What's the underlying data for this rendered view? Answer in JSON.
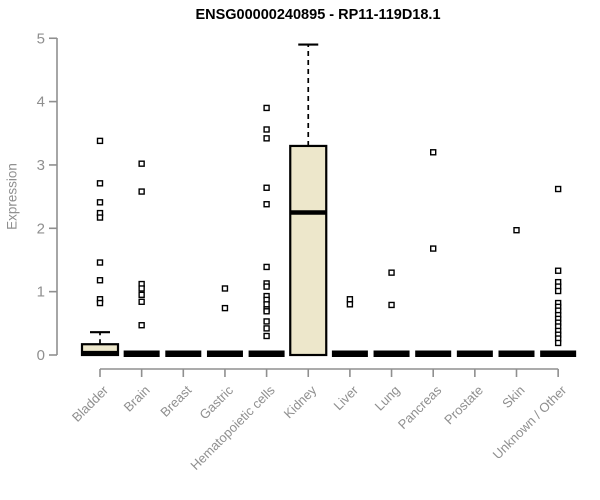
{
  "colors": {
    "box_fill": "#ede7cb",
    "box_stroke": "#000000",
    "median": "#000000",
    "flat_bar": "#000000",
    "axis": "#8f8f8f",
    "tick_text": "#8f8f8f",
    "title_text": "#000000",
    "outlier_fill": "#ffffff",
    "outlier_stroke": "#000000"
  },
  "chart_data": {
    "type": "boxplot",
    "title": "ENSG00000240895 - RP11-119D18.1",
    "xlabel": "",
    "ylabel": "Expression",
    "ylim": [
      0,
      5
    ],
    "yticks": [
      0,
      1,
      2,
      3,
      4,
      5
    ],
    "grid": "off",
    "legend": "none",
    "categories": [
      "Bladder",
      "Brain",
      "Breast",
      "Gastric",
      "Hematopoietic cells",
      "Kidney",
      "Liver",
      "Lung",
      "Pancreas",
      "Prostate",
      "Skin",
      "Unknown / Other"
    ],
    "series": [
      {
        "category": "Bladder",
        "whisker_low": 0,
        "q1": 0,
        "median": 0.03,
        "q3": 0.17,
        "whisker_high": 0.36,
        "outliers": [
          3.38,
          2.71,
          2.41,
          2.24,
          2.17,
          1.46,
          1.18,
          0.88,
          0.82
        ]
      },
      {
        "category": "Brain",
        "whisker_low": 0,
        "q1": 0,
        "median": 0,
        "q3": 0,
        "whisker_high": 0,
        "outliers": [
          3.02,
          2.58,
          1.12,
          1.05,
          0.95,
          0.84,
          0.47
        ]
      },
      {
        "category": "Breast",
        "whisker_low": 0,
        "q1": 0,
        "median": 0,
        "q3": 0,
        "whisker_high": 0,
        "outliers": []
      },
      {
        "category": "Gastric",
        "whisker_low": 0,
        "q1": 0,
        "median": 0,
        "q3": 0,
        "whisker_high": 0,
        "outliers": [
          1.05,
          0.74
        ]
      },
      {
        "category": "Hematopoietic cells",
        "whisker_low": 0,
        "q1": 0,
        "median": 0,
        "q3": 0,
        "whisker_high": 0,
        "outliers": [
          3.9,
          3.56,
          3.42,
          2.64,
          2.38,
          1.39,
          1.13,
          1.08,
          0.93,
          0.87,
          0.8,
          0.72,
          0.69,
          0.53,
          0.42,
          0.3
        ]
      },
      {
        "category": "Kidney",
        "whisker_low": 0,
        "q1": 0,
        "median": 2.25,
        "q3": 3.3,
        "whisker_high": 4.9,
        "outliers": []
      },
      {
        "category": "Liver",
        "whisker_low": 0,
        "q1": 0,
        "median": 0,
        "q3": 0,
        "whisker_high": 0,
        "outliers": [
          0.88,
          0.8
        ]
      },
      {
        "category": "Lung",
        "whisker_low": 0,
        "q1": 0,
        "median": 0,
        "q3": 0,
        "whisker_high": 0,
        "outliers": [
          1.3,
          0.79
        ]
      },
      {
        "category": "Pancreas",
        "whisker_low": 0,
        "q1": 0,
        "median": 0,
        "q3": 0,
        "whisker_high": 0,
        "outliers": [
          3.2,
          1.68
        ]
      },
      {
        "category": "Prostate",
        "whisker_low": 0,
        "q1": 0,
        "median": 0,
        "q3": 0,
        "whisker_high": 0,
        "outliers": []
      },
      {
        "category": "Skin",
        "whisker_low": 0,
        "q1": 0,
        "median": 0,
        "q3": 0,
        "whisker_high": 0,
        "outliers": [
          1.97
        ]
      },
      {
        "category": "Unknown / Other",
        "whisker_low": 0,
        "q1": 0,
        "median": 0,
        "q3": 0,
        "whisker_high": 0,
        "outliers": [
          2.62,
          1.33,
          1.15,
          1.08,
          1.01,
          0.82,
          0.76,
          0.7,
          0.63,
          0.57,
          0.51,
          0.45,
          0.38,
          0.32,
          0.26,
          0.19
        ]
      }
    ]
  }
}
